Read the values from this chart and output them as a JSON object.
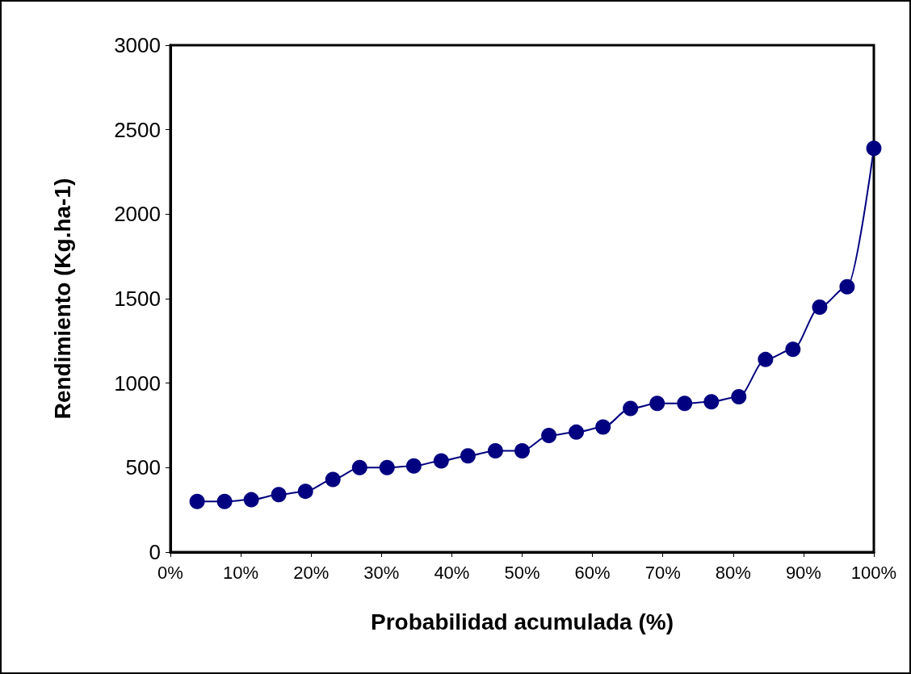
{
  "chart_data": {
    "type": "line",
    "xlabel": "Probabilidad acumulada (%)",
    "ylabel": "Rendimiento (Kg.ha-1)",
    "x": [
      3.8,
      7.7,
      11.5,
      15.4,
      19.2,
      23.1,
      26.9,
      30.8,
      34.6,
      38.5,
      42.3,
      46.2,
      50,
      53.8,
      57.7,
      61.5,
      65.4,
      69.2,
      73.1,
      76.9,
      80.8,
      84.6,
      88.5,
      92.3,
      96.2,
      100
    ],
    "series": [
      {
        "color": "#000080",
        "values": [
          300,
          300,
          310,
          340,
          360,
          430,
          500,
          500,
          510,
          540,
          570,
          600,
          600,
          690,
          710,
          740,
          850,
          880,
          880,
          890,
          920,
          1140,
          1200,
          1450,
          1570,
          2390
        ]
      }
    ],
    "xlim": [
      0,
      100
    ],
    "xticks": [
      {
        "value": 0,
        "label": "0%"
      },
      {
        "value": 10,
        "label": "10%"
      },
      {
        "value": 20,
        "label": "20%"
      },
      {
        "value": 30,
        "label": "30%"
      },
      {
        "value": 40,
        "label": "40%"
      },
      {
        "value": 50,
        "label": "50%"
      },
      {
        "value": 60,
        "label": "60%"
      },
      {
        "value": 70,
        "label": "70%"
      },
      {
        "value": 80,
        "label": "80%"
      },
      {
        "value": 90,
        "label": "90%"
      },
      {
        "value": 100,
        "label": "100%"
      }
    ],
    "ylim": [
      0,
      3000
    ],
    "yticks": [
      0,
      500,
      1000,
      1500,
      2000,
      2500,
      3000
    ],
    "marker": "circle",
    "line_style": "solid",
    "grid": false
  }
}
